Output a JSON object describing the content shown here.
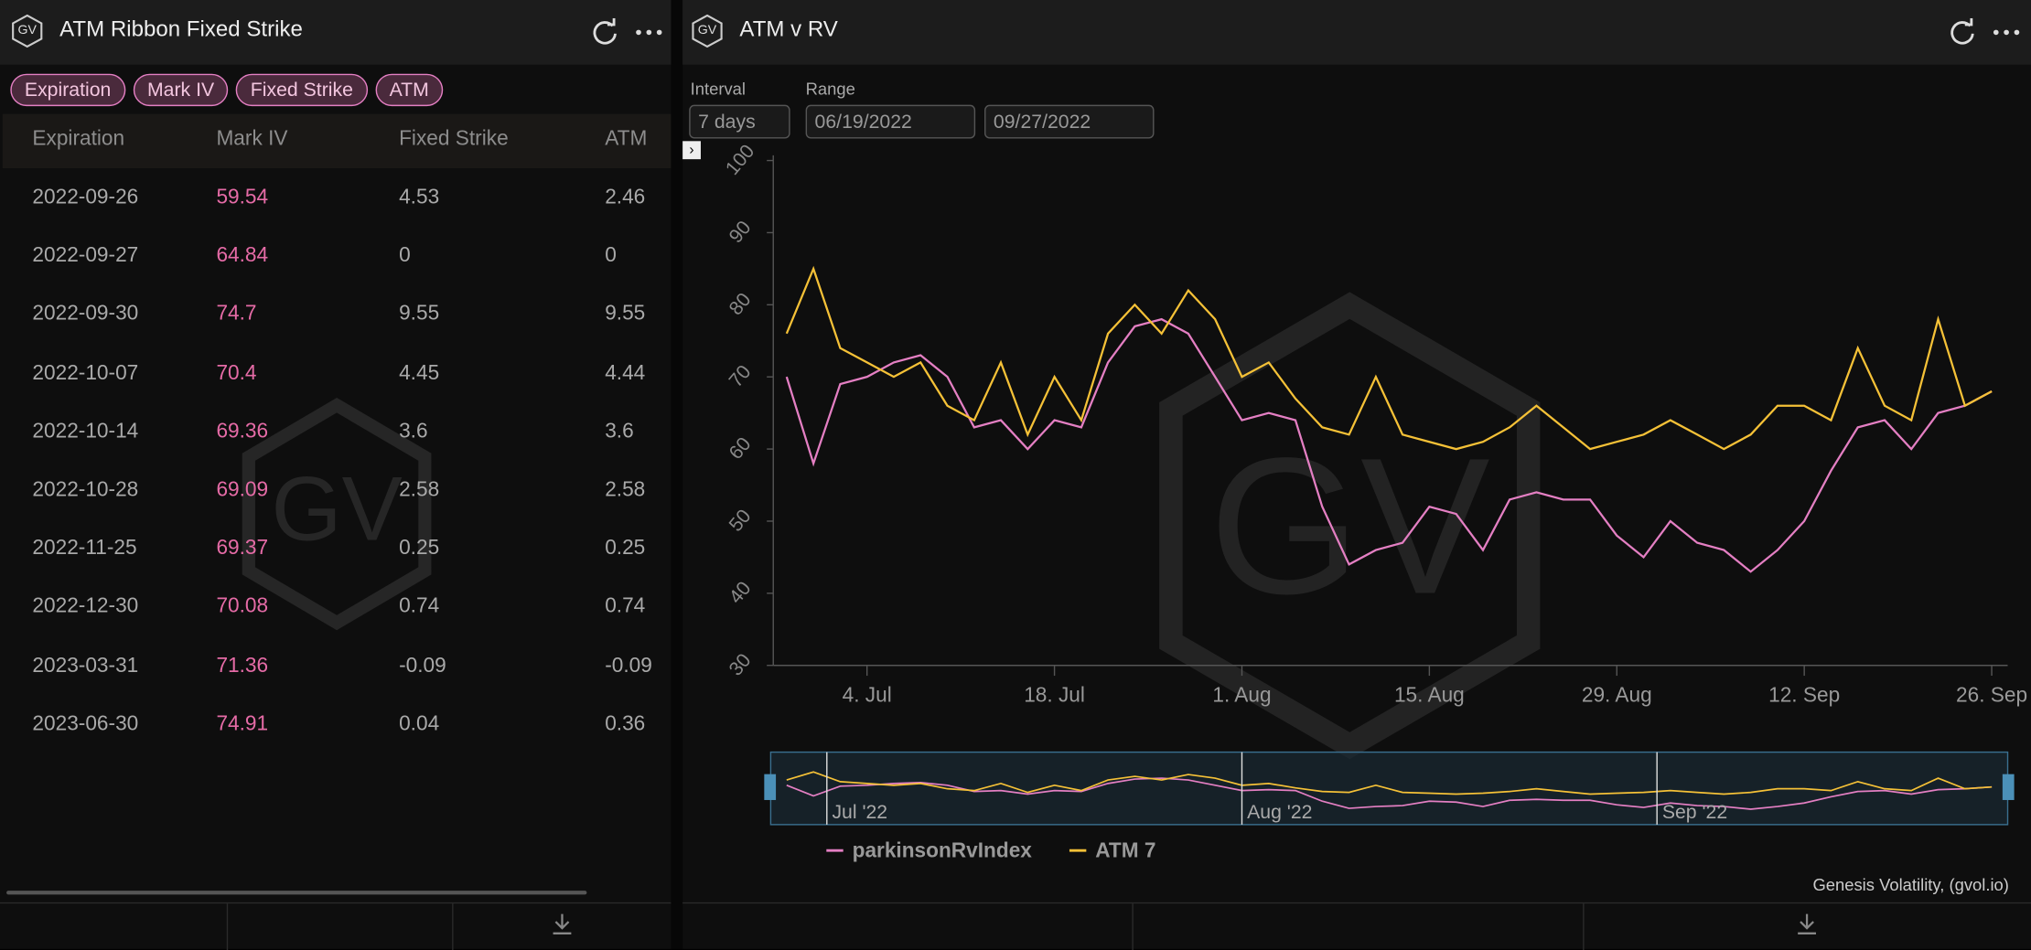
{
  "left_panel": {
    "logo": "GV",
    "title": "ATM Ribbon Fixed Strike",
    "chips": [
      "Expiration",
      "Mark IV",
      "Fixed Strike",
      "ATM"
    ],
    "watermark": "GV",
    "table": {
      "columns": [
        "Expiration",
        "Mark IV",
        "Fixed Strike",
        "ATM"
      ],
      "rows": [
        [
          "2022-09-26",
          59.54,
          4.53,
          2.46
        ],
        [
          "2022-09-27",
          64.84,
          0,
          0
        ],
        [
          "2022-09-30",
          74.7,
          9.55,
          9.55
        ],
        [
          "2022-10-07",
          70.4,
          4.45,
          4.44
        ],
        [
          "2022-10-14",
          69.36,
          3.6,
          3.6
        ],
        [
          "2022-10-28",
          69.09,
          2.58,
          2.58
        ],
        [
          "2022-11-25",
          69.37,
          0.25,
          0.25
        ],
        [
          "2022-12-30",
          70.08,
          0.74,
          0.74
        ],
        [
          "2023-03-31",
          71.36,
          -0.09,
          -0.09
        ],
        [
          "2023-06-30",
          74.91,
          0.04,
          0.36
        ]
      ]
    }
  },
  "right_panel": {
    "logo": "GV",
    "title": "ATM v RV",
    "interval_label": "Interval",
    "interval": "7 days",
    "range_label": "Range",
    "range_start": "06/19/2022",
    "range_end": "09/27/2022",
    "credit": "Genesis Volatility, (gvol.io)",
    "watermark": "GV"
  },
  "chart_data": {
    "type": "line",
    "x": [
      "2022-06-28",
      "2022-06-30",
      "2022-07-02",
      "2022-07-04",
      "2022-07-06",
      "2022-07-08",
      "2022-07-10",
      "2022-07-12",
      "2022-07-14",
      "2022-07-16",
      "2022-07-18",
      "2022-07-20",
      "2022-07-22",
      "2022-07-24",
      "2022-07-26",
      "2022-07-28",
      "2022-07-30",
      "2022-08-01",
      "2022-08-03",
      "2022-08-05",
      "2022-08-07",
      "2022-08-09",
      "2022-08-11",
      "2022-08-13",
      "2022-08-15",
      "2022-08-17",
      "2022-08-19",
      "2022-08-21",
      "2022-08-23",
      "2022-08-25",
      "2022-08-27",
      "2022-08-29",
      "2022-08-31",
      "2022-09-02",
      "2022-09-04",
      "2022-09-06",
      "2022-09-08",
      "2022-09-10",
      "2022-09-12",
      "2022-09-14",
      "2022-09-16",
      "2022-09-18",
      "2022-09-20",
      "2022-09-22",
      "2022-09-24",
      "2022-09-26"
    ],
    "series": [
      {
        "name": "parkinsonRvIndex",
        "color": "#e47fc3",
        "values": [
          70,
          58,
          69,
          70,
          72,
          73,
          70,
          63,
          64,
          60,
          64,
          63,
          72,
          77,
          78,
          76,
          70,
          64,
          65,
          64,
          52,
          44,
          46,
          47,
          52,
          51,
          46,
          53,
          54,
          53,
          53,
          48,
          45,
          50,
          47,
          46,
          43,
          46,
          50,
          57,
          63,
          64,
          60,
          65,
          66,
          68
        ]
      },
      {
        "name": "ATM 7",
        "color": "#f5c137",
        "values": [
          76,
          85,
          74,
          72,
          70,
          72,
          66,
          64,
          72,
          62,
          70,
          64,
          76,
          80,
          76,
          82,
          78,
          70,
          72,
          67,
          63,
          62,
          70,
          62,
          61,
          60,
          61,
          63,
          66,
          63,
          60,
          61,
          62,
          64,
          62,
          60,
          62,
          66,
          66,
          64,
          74,
          66,
          64,
          78,
          66,
          68
        ]
      }
    ],
    "xlim": [
      "2022-06-27",
      "2022-09-27"
    ],
    "xticks": [
      {
        "value": "2022-07-04",
        "label": "4. Jul"
      },
      {
        "value": "2022-07-18",
        "label": "18. Jul"
      },
      {
        "value": "2022-08-01",
        "label": "1. Aug"
      },
      {
        "value": "2022-08-15",
        "label": "15. Aug"
      },
      {
        "value": "2022-08-29",
        "label": "29. Aug"
      },
      {
        "value": "2022-09-12",
        "label": "12. Sep"
      },
      {
        "value": "2022-09-26",
        "label": "26. Sep"
      }
    ],
    "ylim": [
      30,
      100
    ],
    "yticks": [
      30,
      40,
      50,
      60,
      70,
      80,
      90,
      100
    ],
    "grid": false,
    "legend": "bottom",
    "navigator_ticks": [
      {
        "value": "2022-07-01",
        "label": "Jul '22"
      },
      {
        "value": "2022-08-01",
        "label": "Aug '22"
      },
      {
        "value": "2022-09-01",
        "label": "Sep '22"
      }
    ]
  }
}
